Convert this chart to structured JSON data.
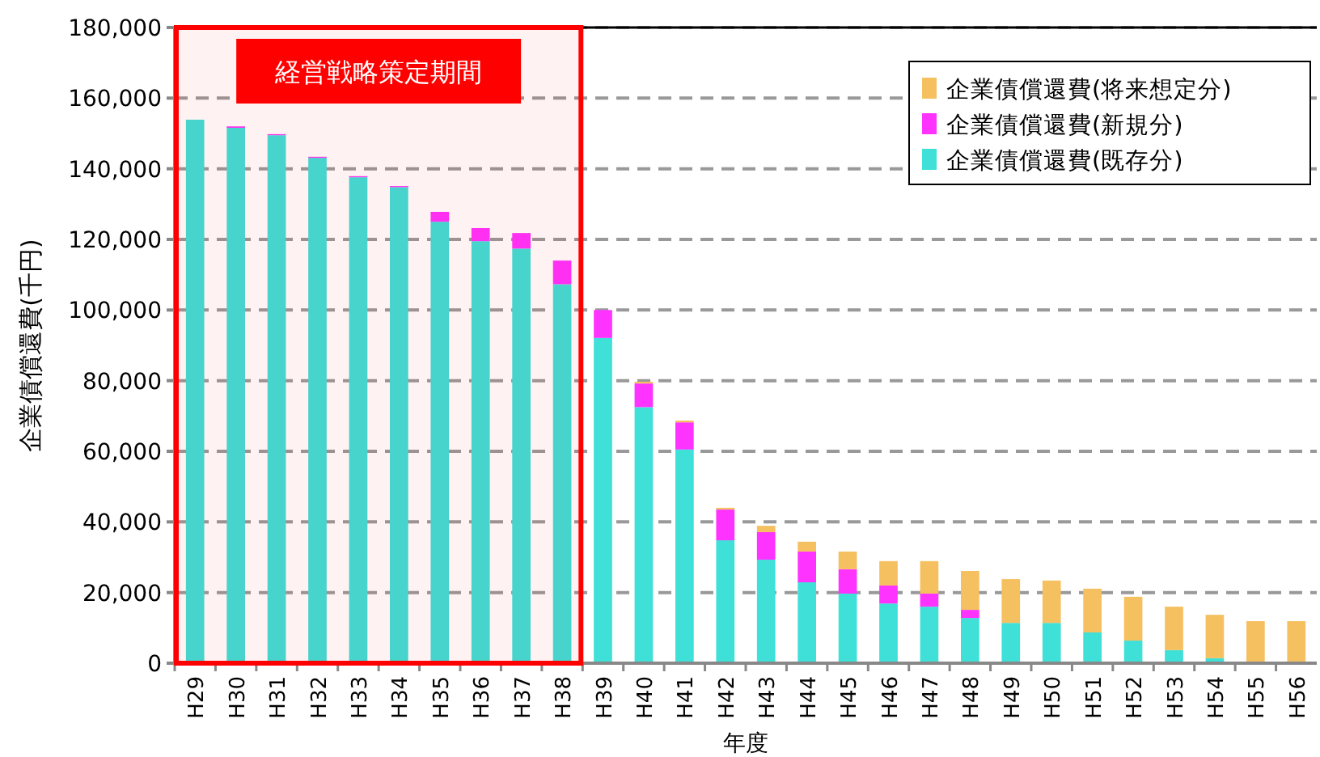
{
  "chart_data": {
    "type": "bar",
    "stacked": true,
    "xlabel": "年度",
    "ylabel": "企業債償還費(千円)",
    "categories": [
      "H29",
      "H30",
      "H31",
      "H32",
      "H33",
      "H34",
      "H35",
      "H36",
      "H37",
      "H38",
      "H39",
      "H40",
      "H41",
      "H42",
      "H43",
      "H44",
      "H45",
      "H46",
      "H47",
      "H48",
      "H49",
      "H50",
      "H51",
      "H52",
      "H53",
      "H54",
      "H55",
      "H56"
    ],
    "series": [
      {
        "name": "企業債償還費(既存分)",
        "color": "#3ee0d8",
        "values": [
          153900,
          151600,
          149500,
          143100,
          137600,
          134800,
          125000,
          119500,
          117400,
          107300,
          92100,
          72500,
          60500,
          34800,
          29300,
          22900,
          19700,
          16900,
          16000,
          12800,
          11400,
          11400,
          8700,
          6400,
          3700,
          1400,
          0,
          0
        ]
      },
      {
        "name": "企業債償還費(新規分)",
        "color": "#ff33ff",
        "values": [
          0,
          400,
          300,
          300,
          300,
          300,
          2800,
          3700,
          4400,
          6700,
          7900,
          6700,
          7700,
          8700,
          7800,
          8700,
          6900,
          5100,
          3700,
          2300,
          0,
          0,
          0,
          0,
          0,
          0,
          0,
          0
        ]
      },
      {
        "name": "企業債償還費(将来想定分)",
        "color": "#f5c060",
        "values": [
          0,
          0,
          0,
          0,
          0,
          0,
          0,
          0,
          0,
          0,
          0,
          500,
          500,
          500,
          1800,
          2800,
          5000,
          6900,
          9200,
          11000,
          12400,
          12000,
          12400,
          12400,
          12300,
          12300,
          11900,
          11900
        ]
      }
    ],
    "ylim": [
      0,
      180000
    ],
    "yticks": [
      0,
      {
        "value": 20000,
        "label": "20,000"
      },
      {
        "value": 40000,
        "label": "40,000"
      },
      {
        "value": 60000,
        "label": "60,000"
      },
      {
        "value": 80000,
        "label": "80,000"
      },
      {
        "value": 100000,
        "label": "100,000"
      },
      {
        "value": 120000,
        "label": "120,000"
      },
      {
        "value": 140000,
        "label": "140,000"
      },
      {
        "value": 160000,
        "label": "160,000"
      },
      {
        "value": 180000,
        "label": "180,000"
      }
    ],
    "grid": "y",
    "legend": "top right",
    "bands": [
      {
        "axis": "x",
        "from": "H29",
        "to": "H38",
        "label": "経営戦略策定期間",
        "color": "#ff0000"
      }
    ]
  }
}
